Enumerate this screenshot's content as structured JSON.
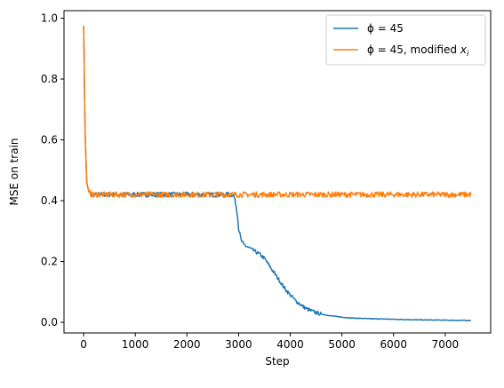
{
  "chart_data": {
    "type": "line",
    "xlabel": "Step",
    "ylabel": "MSE on train",
    "xlim": [
      -380,
      7880
    ],
    "ylim": [
      -0.035,
      1.025
    ],
    "x_ticks": [
      0,
      1000,
      2000,
      3000,
      4000,
      5000,
      6000,
      7000
    ],
    "x_tick_labels": [
      "0",
      "1000",
      "2000",
      "3000",
      "4000",
      "5000",
      "6000",
      "7000"
    ],
    "y_ticks": [
      0.0,
      0.2,
      0.4,
      0.6,
      0.8,
      1.0
    ],
    "y_tick_labels": [
      "0.0",
      "0.2",
      "0.4",
      "0.6",
      "0.8",
      "1.0"
    ],
    "grid": false,
    "legend_position": "upper right",
    "series": [
      {
        "name": "ϕ = 45",
        "color": "#1f77b4",
        "x": [
          0,
          30,
          60,
          100,
          150,
          200,
          300,
          500,
          800,
          1000,
          1200,
          1500,
          1800,
          2000,
          2200,
          2500,
          2700,
          2800,
          2880,
          2920,
          2950,
          2980,
          3000,
          3050,
          3100,
          3200,
          3300,
          3400,
          3500,
          3600,
          3700,
          3800,
          3900,
          4000,
          4100,
          4200,
          4300,
          4400,
          4500,
          4600,
          4800,
          5000,
          5200,
          5500,
          6000,
          6500,
          7000,
          7500
        ],
        "y": [
          0.975,
          0.62,
          0.46,
          0.43,
          0.42,
          0.42,
          0.42,
          0.42,
          0.42,
          0.42,
          0.42,
          0.42,
          0.42,
          0.42,
          0.42,
          0.42,
          0.42,
          0.42,
          0.42,
          0.41,
          0.385,
          0.35,
          0.31,
          0.27,
          0.255,
          0.245,
          0.235,
          0.225,
          0.21,
          0.185,
          0.16,
          0.135,
          0.11,
          0.09,
          0.072,
          0.058,
          0.046,
          0.038,
          0.032,
          0.027,
          0.021,
          0.017,
          0.014,
          0.012,
          0.01,
          0.008,
          0.007,
          0.006
        ]
      },
      {
        "name": "ϕ = 45, modified x_i",
        "color": "#ff7f0e",
        "x": [
          0,
          30,
          60,
          100,
          150,
          200,
          400,
          700,
          1000,
          1500,
          2000,
          2500,
          3000,
          3500,
          4000,
          4500,
          5000,
          5500,
          6000,
          6500,
          7000,
          7500
        ],
        "y": [
          0.975,
          0.62,
          0.46,
          0.43,
          0.42,
          0.42,
          0.42,
          0.42,
          0.42,
          0.42,
          0.42,
          0.42,
          0.42,
          0.42,
          0.42,
          0.42,
          0.42,
          0.42,
          0.42,
          0.42,
          0.42,
          0.42
        ]
      }
    ]
  }
}
